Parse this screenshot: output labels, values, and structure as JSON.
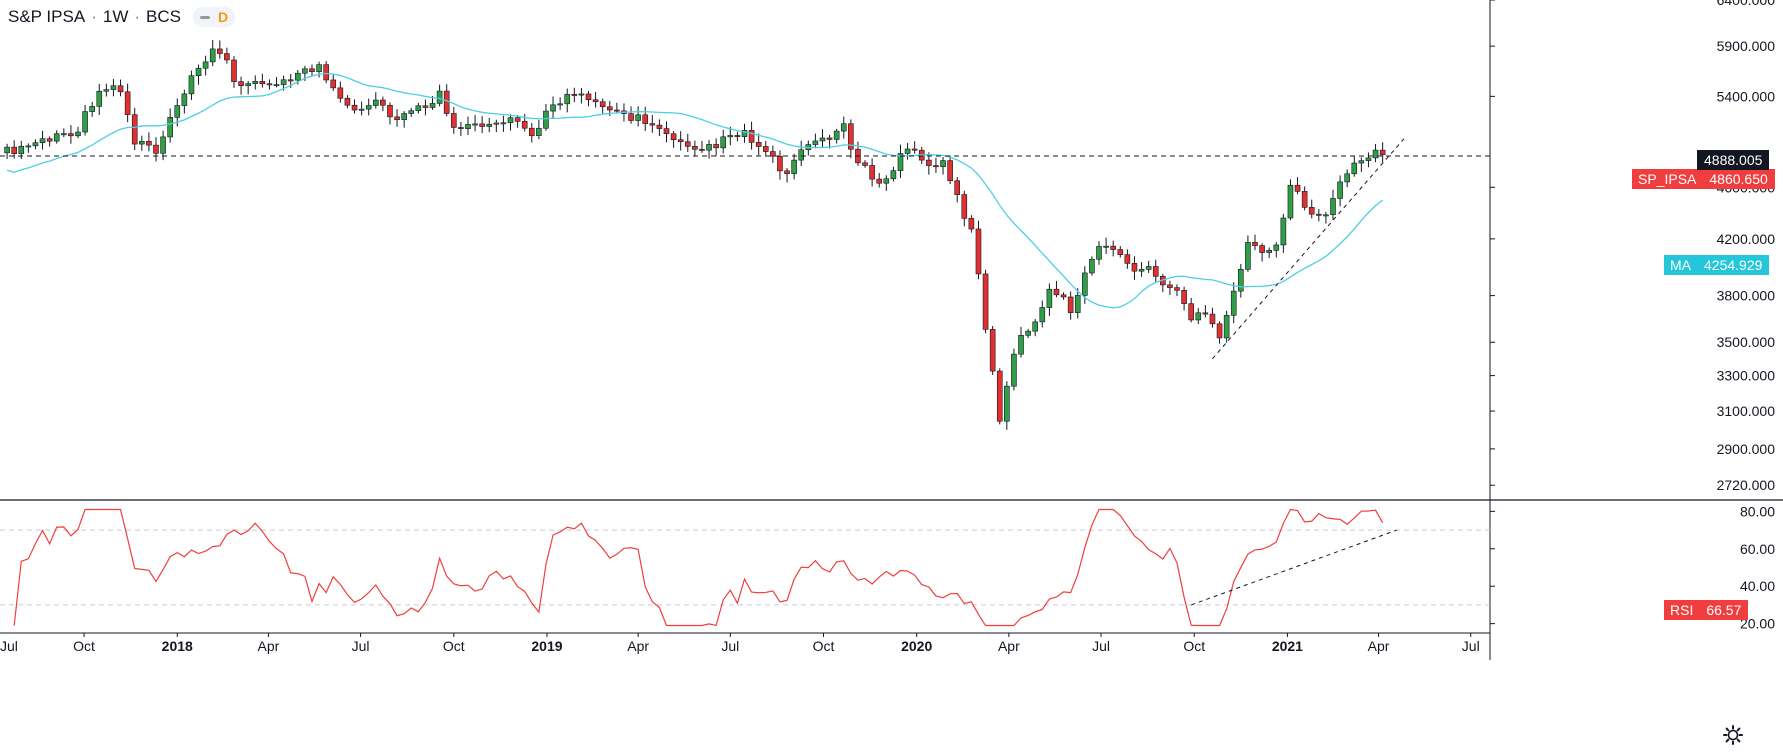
{
  "header": {
    "symbol": "S&P IPSA",
    "interval": "1W",
    "exchange": "BCS",
    "mode": "D"
  },
  "colors": {
    "up": "#2f9e44",
    "down": "#e03131",
    "ma": "#4dd0e1",
    "rsi": "#f03e3e",
    "tag_price": "#f03e3e",
    "tag_ma": "#26c6da",
    "last_box": "#131722"
  },
  "price_tags": {
    "last_box": "4888.005",
    "symbol_name": "SP_IPSA",
    "symbol_value": "4860.650",
    "ma_name": "MA",
    "ma_value": "4254.929",
    "rsi_name": "RSI",
    "rsi_value": "66.57"
  },
  "chart_data": [
    {
      "type": "candlestick",
      "interval": "weekly",
      "title": "S&P IPSA",
      "overlay_ma": "MA",
      "y_scale": "log",
      "ylim": [
        2650,
        6400
      ],
      "y_ticks": [
        "6400.000",
        "5900.000",
        "5400.000",
        "4600.000",
        "4200.000",
        "3800.000",
        "3500.000",
        "3300.000",
        "3100.000",
        "2900.000",
        "2720.000"
      ],
      "x_ticks": [
        "Jul",
        "Oct",
        "2018",
        "Apr",
        "Jul",
        "Oct",
        "2019",
        "Apr",
        "Jul",
        "Oct",
        "2020",
        "Apr",
        "Jul",
        "Oct",
        "2021",
        "Apr",
        "Jul"
      ],
      "x_bold_ticks": [
        "2018",
        "2019",
        "2020",
        "2021"
      ],
      "x_start": "2017-07-10",
      "x_end": "2021-07-20",
      "horizontal_line": 4860.65,
      "trendline": {
        "start": [
          "2020-10-19",
          3400
        ],
        "end": [
          "2021-04-26",
          5010
        ]
      },
      "close_anchors": [
        [
          "2017-07-17",
          4900
        ],
        [
          "2017-08-21",
          5000
        ],
        [
          "2017-09-25",
          5100
        ],
        [
          "2017-10-16",
          5480
        ],
        [
          "2017-11-06",
          5450
        ],
        [
          "2017-11-20",
          4980
        ],
        [
          "2017-12-04",
          4950
        ],
        [
          "2017-12-11",
          4870
        ],
        [
          "2017-12-25",
          5170
        ],
        [
          "2018-01-15",
          5550
        ],
        [
          "2018-02-05",
          5820
        ],
        [
          "2018-02-19",
          5780
        ],
        [
          "2018-02-26",
          5550
        ],
        [
          "2018-03-26",
          5480
        ],
        [
          "2018-04-23",
          5600
        ],
        [
          "2018-05-21",
          5680
        ],
        [
          "2018-06-04",
          5480
        ],
        [
          "2018-06-25",
          5290
        ],
        [
          "2018-07-16",
          5370
        ],
        [
          "2018-08-06",
          5180
        ],
        [
          "2018-08-27",
          5280
        ],
        [
          "2018-09-17",
          5420
        ],
        [
          "2018-10-01",
          5150
        ],
        [
          "2018-10-29",
          5110
        ],
        [
          "2018-11-26",
          5170
        ],
        [
          "2018-12-17",
          5030
        ],
        [
          "2019-01-07",
          5350
        ],
        [
          "2019-01-28",
          5420
        ],
        [
          "2019-02-18",
          5310
        ],
        [
          "2019-03-11",
          5250
        ],
        [
          "2019-04-08",
          5180
        ],
        [
          "2019-05-06",
          4980
        ],
        [
          "2019-05-27",
          4880
        ],
        [
          "2019-06-17",
          4970
        ],
        [
          "2019-07-15",
          5050
        ],
        [
          "2019-08-05",
          4880
        ],
        [
          "2019-08-26",
          4700
        ],
        [
          "2019-09-16",
          4960
        ],
        [
          "2019-10-14",
          5070
        ],
        [
          "2019-10-21",
          5100
        ],
        [
          "2019-11-04",
          4780
        ],
        [
          "2019-11-18",
          4700
        ],
        [
          "2019-12-02",
          4650
        ],
        [
          "2019-12-23",
          4960
        ],
        [
          "2020-01-06",
          4820
        ],
        [
          "2020-01-27",
          4780
        ],
        [
          "2020-02-24",
          4250
        ],
        [
          "2020-03-09",
          3600
        ],
        [
          "2020-03-23",
          3060
        ],
        [
          "2020-04-06",
          3450
        ],
        [
          "2020-04-27",
          3650
        ],
        [
          "2020-05-11",
          3850
        ],
        [
          "2020-06-01",
          3720
        ],
        [
          "2020-06-22",
          4050
        ],
        [
          "2020-07-06",
          4180
        ],
        [
          "2020-07-27",
          4010
        ],
        [
          "2020-08-17",
          3970
        ],
        [
          "2020-09-14",
          3820
        ],
        [
          "2020-09-28",
          3640
        ],
        [
          "2020-10-12",
          3710
        ],
        [
          "2020-10-26",
          3550
        ],
        [
          "2020-11-09",
          3830
        ],
        [
          "2020-11-23",
          4150
        ],
        [
          "2020-12-21",
          4120
        ],
        [
          "2021-01-04",
          4600
        ],
        [
          "2021-01-25",
          4420
        ],
        [
          "2021-02-08",
          4400
        ],
        [
          "2021-03-01",
          4720
        ],
        [
          "2021-03-22",
          4880
        ],
        [
          "2021-04-05",
          4860
        ]
      ]
    },
    {
      "type": "line",
      "title": "RSI",
      "ylim": [
        15,
        85
      ],
      "y_ticks": [
        "80.00",
        "60.00",
        "40.00",
        "20.00"
      ],
      "levels": [
        70,
        30
      ],
      "last": 66.57,
      "trendline": {
        "start": [
          "2020-09-28",
          30
        ],
        "end": [
          "2021-04-19",
          70
        ]
      }
    }
  ]
}
